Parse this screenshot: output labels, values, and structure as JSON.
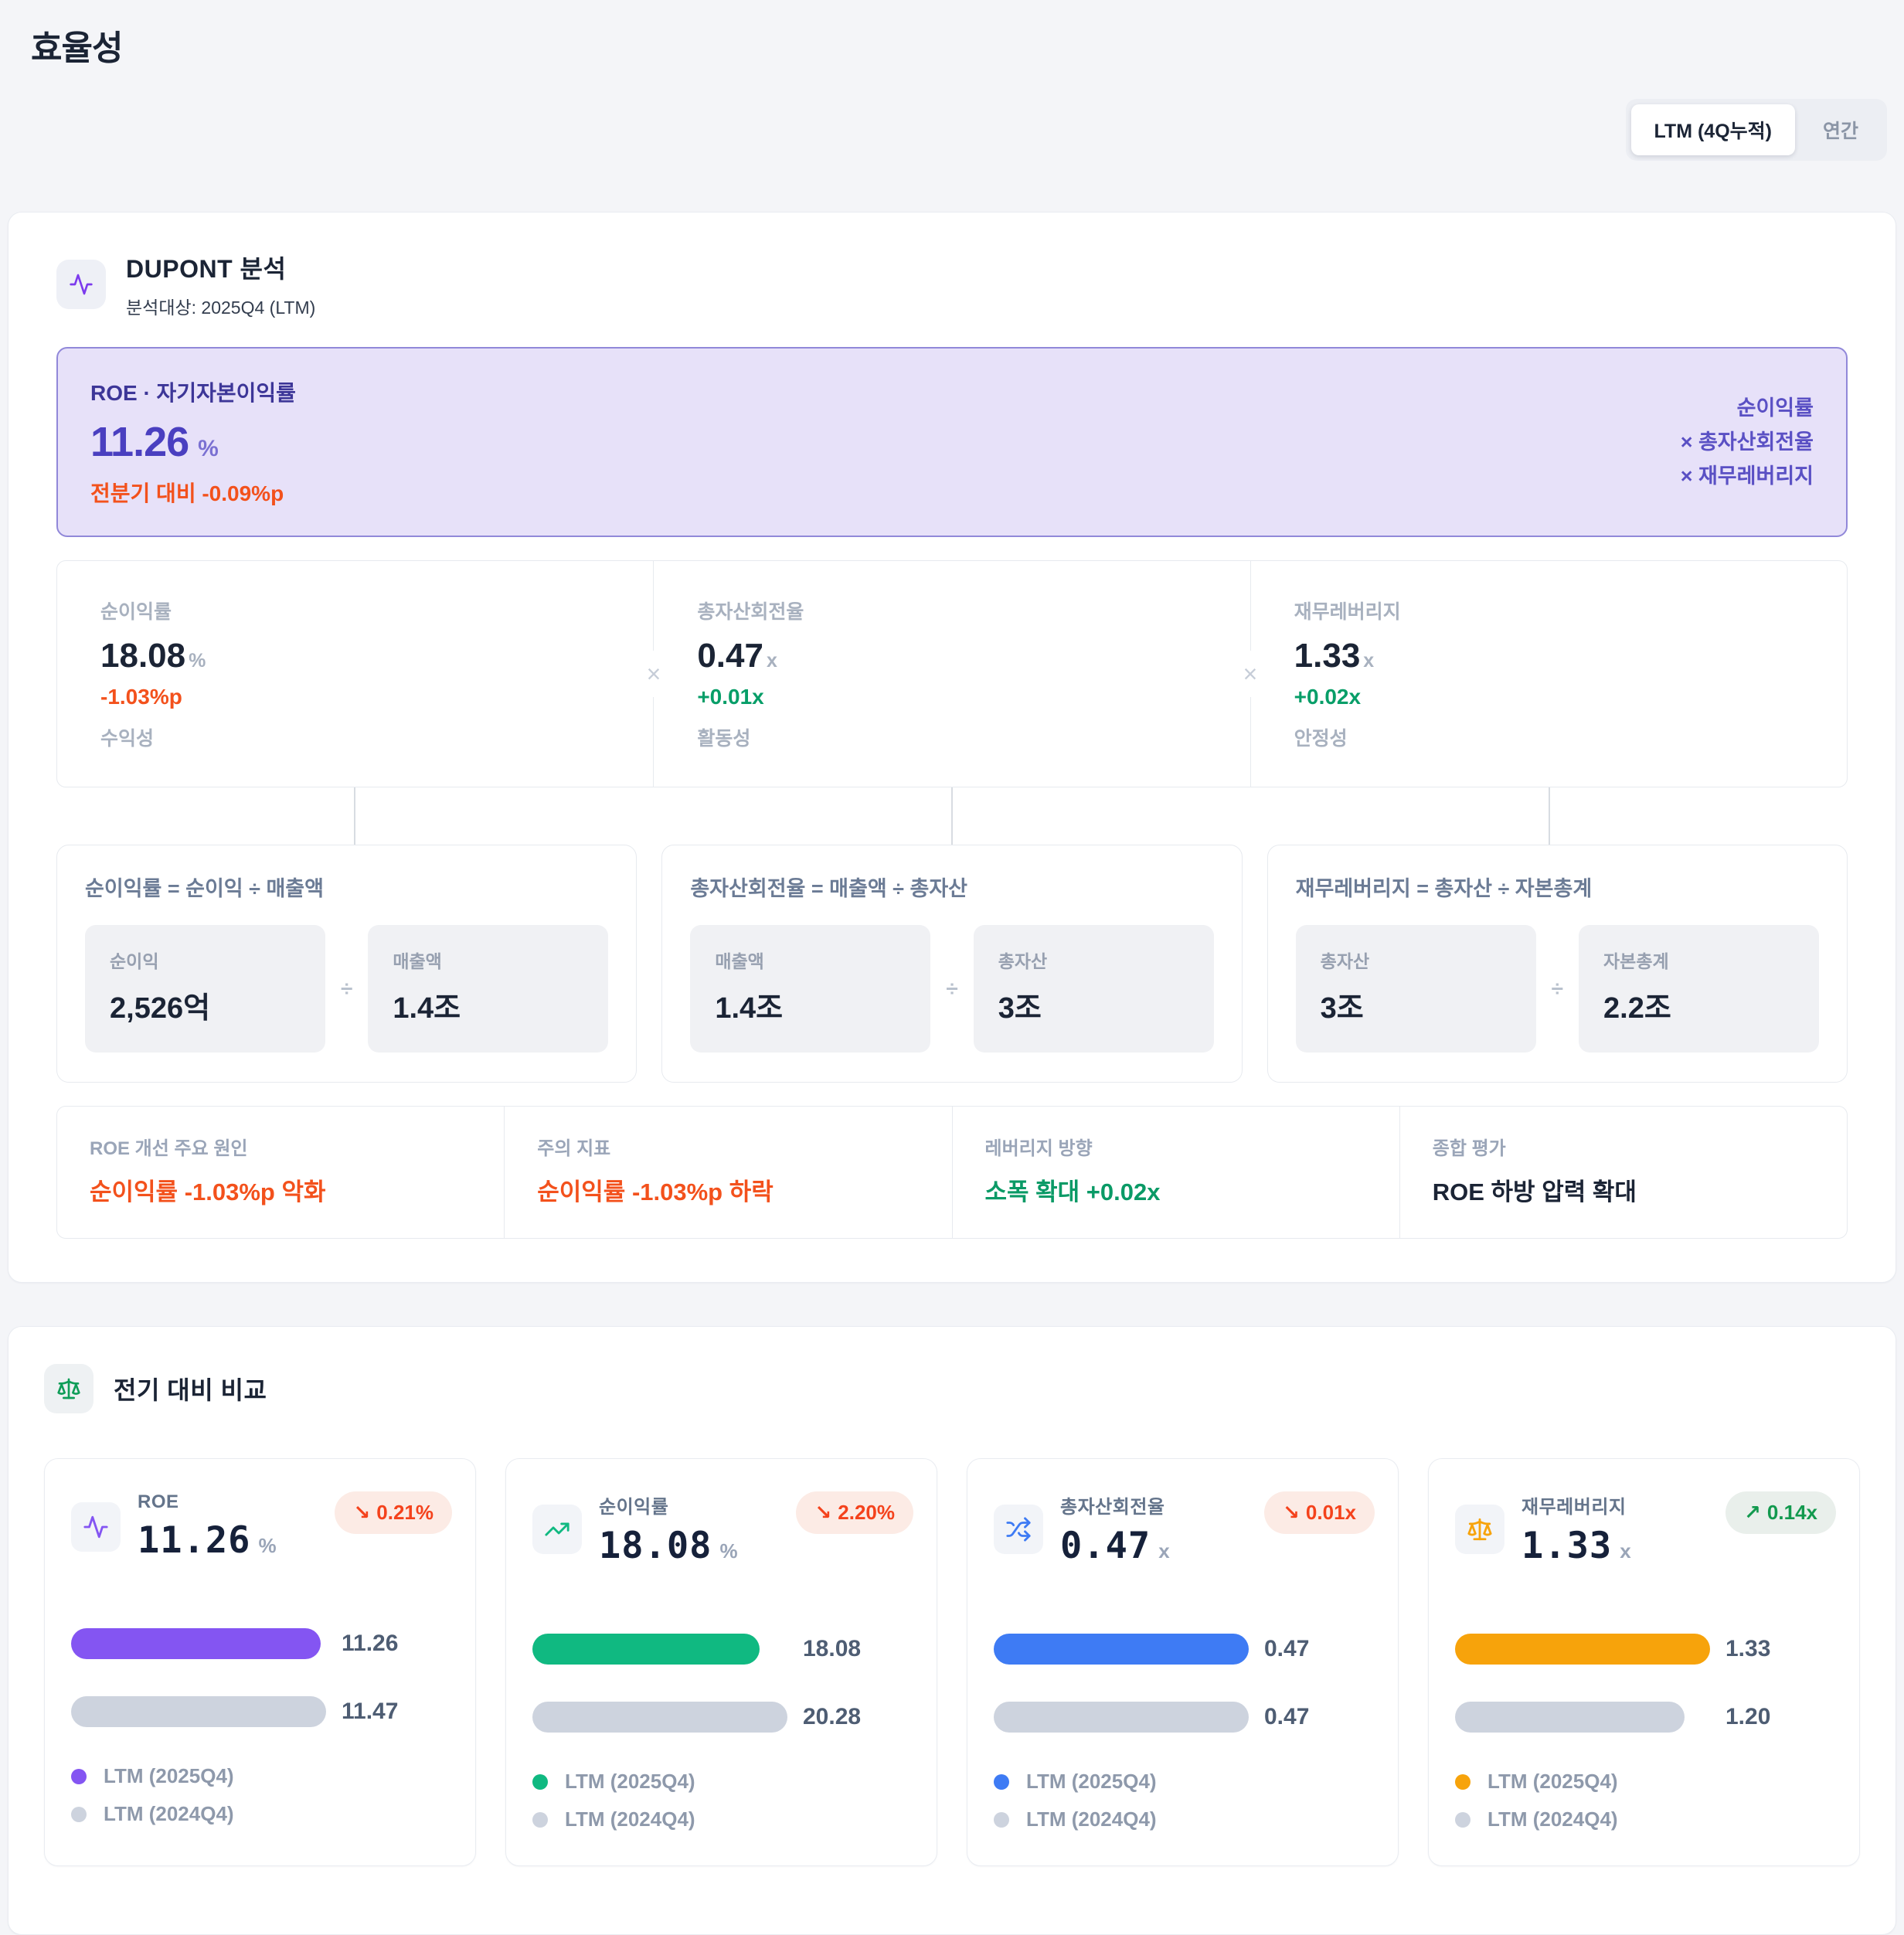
{
  "page": {
    "title": "효율성"
  },
  "period_toggle": {
    "options": [
      {
        "label": "LTM (4Q누적)",
        "selected": true
      },
      {
        "label": "연간",
        "selected": false
      }
    ]
  },
  "dupont": {
    "title": "DUPONT 분석",
    "subtitle": "분석대상: 2025Q4 (LTM)",
    "multiply_symbol": "×",
    "divide_symbol": "÷",
    "roe_banner": {
      "label": "ROE · 자기자본이익률",
      "value": "11.26",
      "unit": "%",
      "delta": "전분기 대비 -0.09%p",
      "formula_lines": [
        "순이익률",
        "× 총자산회전율",
        "× 재무레버리지"
      ]
    },
    "components": [
      {
        "label": "순이익률",
        "value": "18.08",
        "unit": "%",
        "delta": "-1.03%p",
        "delta_dir": "down",
        "category": "수익성"
      },
      {
        "label": "총자산회전율",
        "value": "0.47",
        "unit": "x",
        "delta": "+0.01x",
        "delta_dir": "up",
        "category": "활동성"
      },
      {
        "label": "재무레버리지",
        "value": "1.33",
        "unit": "x",
        "delta": "+0.02x",
        "delta_dir": "up",
        "category": "안정성"
      }
    ],
    "formulas": [
      {
        "title": "순이익률 = 순이익 ÷ 매출액",
        "left": {
          "label": "순이익",
          "value": "2,526억"
        },
        "right": {
          "label": "매출액",
          "value": "1.4조"
        }
      },
      {
        "title": "총자산회전율 = 매출액 ÷ 총자산",
        "left": {
          "label": "매출액",
          "value": "1.4조"
        },
        "right": {
          "label": "총자산",
          "value": "3조"
        }
      },
      {
        "title": "재무레버리지 = 총자산 ÷ 자본총계",
        "left": {
          "label": "총자산",
          "value": "3조"
        },
        "right": {
          "label": "자본총계",
          "value": "2.2조"
        }
      }
    ],
    "summary": [
      {
        "label": "ROE 개선 주요 원인",
        "value": "순이익률 -1.03%p 악화",
        "tone": "negative"
      },
      {
        "label": "주의 지표",
        "value": "순이익률 -1.03%p 하락",
        "tone": "negative"
      },
      {
        "label": "레버리지 방향",
        "value": "소폭 확대 +0.02x",
        "tone": "positive"
      },
      {
        "label": "종합 평가",
        "value": "ROE 하방 압력 확대",
        "tone": "neutral"
      }
    ]
  },
  "comparison": {
    "title": "전기 대비 비교",
    "cards": [
      {
        "label": "ROE",
        "value": "11.26",
        "unit": "%",
        "icon": "pulse",
        "color": "#8455f2",
        "prev_color": "#cdd3de",
        "badge": {
          "arrow": "↘",
          "text": "0.21%",
          "tone": "negative"
        },
        "bars": [
          {
            "name": "LTM (2025Q4)",
            "value": 11.26,
            "display": "11.26"
          },
          {
            "name": "LTM (2024Q4)",
            "value": 11.47,
            "display": "11.47"
          }
        ]
      },
      {
        "label": "순이익률",
        "value": "18.08",
        "unit": "%",
        "icon": "trend-up",
        "color": "#10b981",
        "prev_color": "#cdd3de",
        "badge": {
          "arrow": "↘",
          "text": "2.20%",
          "tone": "negative"
        },
        "bars": [
          {
            "name": "LTM (2025Q4)",
            "value": 18.08,
            "display": "18.08"
          },
          {
            "name": "LTM (2024Q4)",
            "value": 20.28,
            "display": "20.28"
          }
        ]
      },
      {
        "label": "총자산회전율",
        "value": "0.47",
        "unit": "x",
        "icon": "shuffle",
        "color": "#3e7bf4",
        "prev_color": "#cdd3de",
        "badge": {
          "arrow": "↘",
          "text": "0.01x",
          "tone": "negative"
        },
        "bars": [
          {
            "name": "LTM (2025Q4)",
            "value": 0.47,
            "display": "0.47"
          },
          {
            "name": "LTM (2024Q4)",
            "value": 0.47,
            "display": "0.47"
          }
        ]
      },
      {
        "label": "재무레버리지",
        "value": "1.33",
        "unit": "x",
        "icon": "scale",
        "color": "#f7a30b",
        "prev_color": "#cdd3de",
        "badge": {
          "arrow": "↗",
          "text": "0.14x",
          "tone": "positive"
        },
        "bars": [
          {
            "name": "LTM (2025Q4)",
            "value": 1.33,
            "display": "1.33"
          },
          {
            "name": "LTM (2024Q4)",
            "value": 1.2,
            "display": "1.20"
          }
        ]
      }
    ]
  }
}
